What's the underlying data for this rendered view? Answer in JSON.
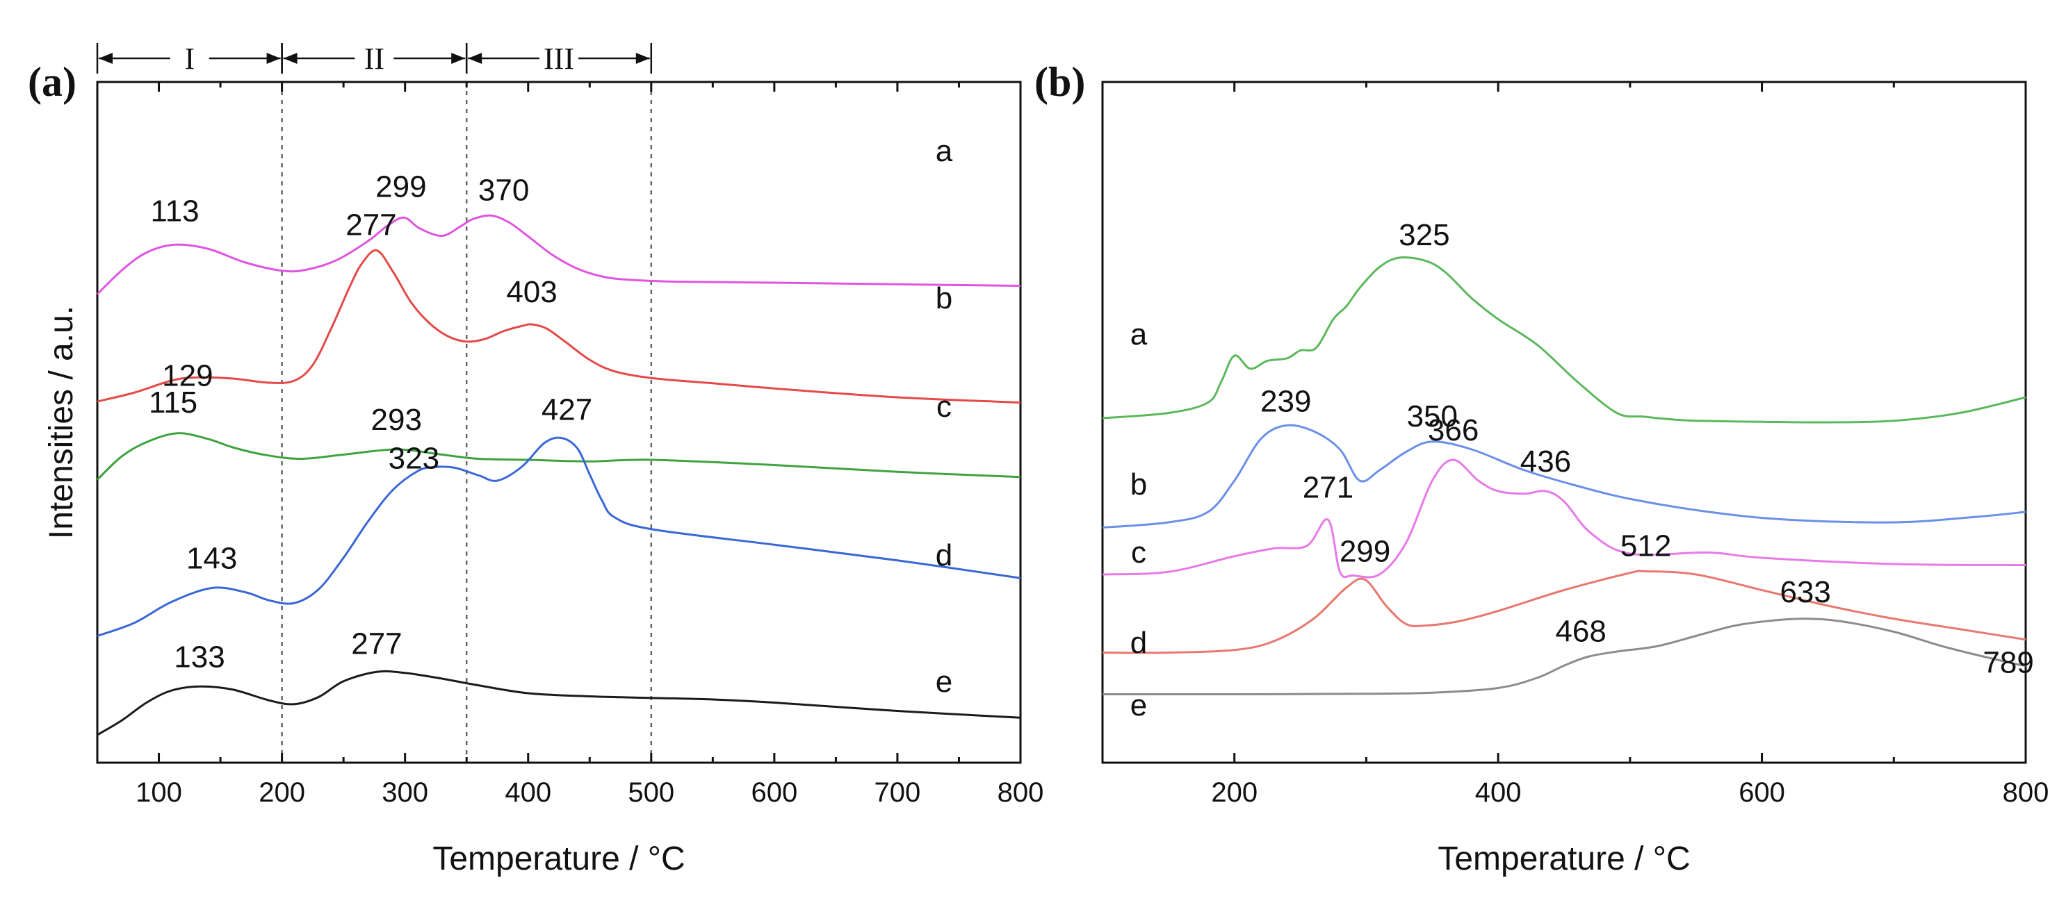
{
  "chart_data": [
    {
      "panel": "(a)",
      "type": "line",
      "xlabel": "Temperature / °C",
      "ylabel": "Intensities / a.u.",
      "xlim": [
        50,
        800
      ],
      "xticks": [
        100,
        200,
        300,
        400,
        500,
        600,
        700,
        800
      ],
      "ylim": [
        0,
        10
      ],
      "yticks_shown": false,
      "vertical_guides": [
        200,
        350,
        500
      ],
      "regions": [
        {
          "label": "I",
          "from": 50,
          "to": 200
        },
        {
          "label": "II",
          "from": 200,
          "to": 350
        },
        {
          "label": "III",
          "from": 350,
          "to": 500
        }
      ],
      "series": [
        {
          "name": "a",
          "color": "#e055e0",
          "x": [
            50,
            70,
            90,
            113,
            140,
            170,
            200,
            220,
            245,
            270,
            285,
            299,
            312,
            330,
            345,
            355,
            370,
            385,
            400,
            420,
            440,
            460,
            480,
            520,
            600,
            700,
            800
          ],
          "y": [
            8.46,
            8.92,
            9.26,
            9.41,
            9.33,
            9.07,
            8.91,
            8.93,
            9.12,
            9.48,
            9.76,
            9.93,
            9.72,
            9.58,
            9.76,
            9.9,
            9.97,
            9.83,
            9.57,
            9.21,
            8.95,
            8.8,
            8.74,
            8.7,
            8.68,
            8.65,
            8.62
          ]
        },
        {
          "name": "b",
          "color": "#e34a48",
          "x": [
            50,
            80,
            110,
            129,
            160,
            190,
            210,
            225,
            240,
            255,
            265,
            277,
            290,
            305,
            320,
            335,
            350,
            365,
            380,
            395,
            403,
            415,
            430,
            450,
            470,
            500,
            550,
            600,
            700,
            800
          ],
          "y": [
            6.4,
            6.57,
            6.8,
            6.86,
            6.84,
            6.76,
            6.8,
            7.1,
            7.8,
            8.6,
            9.05,
            9.3,
            8.9,
            8.3,
            7.9,
            7.65,
            7.55,
            7.6,
            7.75,
            7.85,
            7.88,
            7.8,
            7.55,
            7.2,
            6.98,
            6.85,
            6.75,
            6.65,
            6.48,
            6.38
          ]
        },
        {
          "name": "c",
          "color": "#3fa33f",
          "x": [
            50,
            70,
            90,
            115,
            140,
            160,
            185,
            215,
            250,
            293,
            330,
            360,
            400,
            450,
            500,
            600,
            700,
            800
          ],
          "y": [
            4.9,
            5.35,
            5.62,
            5.79,
            5.68,
            5.52,
            5.38,
            5.3,
            5.38,
            5.48,
            5.38,
            5.3,
            5.28,
            5.25,
            5.28,
            5.18,
            5.05,
            4.95
          ]
        },
        {
          "name": "d",
          "color": "#3a67d6",
          "x": [
            50,
            80,
            110,
            143,
            170,
            190,
            210,
            230,
            250,
            270,
            290,
            310,
            323,
            340,
            360,
            375,
            395,
            413,
            427,
            440,
            450,
            460,
            470,
            500,
            600,
            700,
            800
          ],
          "y": [
            1.9,
            2.15,
            2.55,
            2.82,
            2.74,
            2.58,
            2.53,
            2.8,
            3.4,
            4.1,
            4.7,
            5.06,
            5.14,
            5.13,
            4.98,
            4.88,
            5.15,
            5.6,
            5.7,
            5.5,
            5.0,
            4.5,
            4.18,
            3.95,
            3.65,
            3.35,
            3.01
          ]
        },
        {
          "name": "e",
          "color": "#1a1a1a",
          "x": [
            50,
            70,
            90,
            110,
            133,
            160,
            190,
            210,
            230,
            250,
            277,
            300,
            330,
            360,
            400,
            450,
            500,
            550,
            600,
            700,
            800
          ],
          "y": [
            0.0,
            0.28,
            0.62,
            0.85,
            0.93,
            0.87,
            0.66,
            0.59,
            0.73,
            1.03,
            1.21,
            1.19,
            1.08,
            0.95,
            0.8,
            0.74,
            0.71,
            0.68,
            0.62,
            0.46,
            0.33
          ]
        }
      ],
      "peak_labels": [
        {
          "text": "113",
          "series": "a",
          "x": 113
        },
        {
          "text": "299",
          "series": "a",
          "x": 299
        },
        {
          "text": "370",
          "series": "a",
          "x": 370
        },
        {
          "text": "277",
          "series": "b",
          "x": 277
        },
        {
          "text": "403",
          "series": "b",
          "x": 403
        },
        {
          "text": "129",
          "series": "b",
          "x": 129
        },
        {
          "text": "115",
          "series": "c",
          "x": 115
        },
        {
          "text": "293",
          "series": "c",
          "x": 293
        },
        {
          "text": "323",
          "series": "d",
          "x": 323
        },
        {
          "text": "427",
          "series": "d",
          "x": 427
        },
        {
          "text": "143",
          "series": "d",
          "x": 143
        },
        {
          "text": "133",
          "series": "e",
          "x": 133
        },
        {
          "text": "277",
          "series": "e",
          "x": 277
        }
      ]
    },
    {
      "panel": "(b)",
      "type": "line",
      "xlabel": "Temperature / °C",
      "ylabel": "",
      "xlim": [
        100,
        800
      ],
      "xticks": [
        200,
        400,
        600,
        800
      ],
      "ylim": [
        0,
        10
      ],
      "yticks_shown": false,
      "series": [
        {
          "name": "a",
          "color": "#5cb85c",
          "x": [
            100,
            150,
            180,
            190,
            200,
            212,
            225,
            240,
            250,
            262,
            275,
            285,
            295,
            310,
            325,
            345,
            360,
            380,
            400,
            430,
            460,
            490,
            510,
            530,
            550,
            600,
            650,
            700,
            750,
            800
          ],
          "y": [
            6.0,
            6.1,
            6.3,
            6.7,
            7.2,
            6.95,
            7.1,
            7.15,
            7.3,
            7.35,
            7.9,
            8.15,
            8.5,
            8.9,
            9.08,
            9.02,
            8.8,
            8.3,
            7.9,
            7.4,
            6.7,
            6.1,
            6.03,
            5.98,
            5.95,
            5.93,
            5.92,
            5.95,
            6.1,
            6.4
          ]
        },
        {
          "name": "b",
          "color": "#6b8fe8",
          "x": [
            100,
            150,
            180,
            200,
            220,
            239,
            260,
            280,
            295,
            310,
            330,
            350,
            380,
            420,
            460,
            500,
            560,
            620,
            700,
            760,
            800
          ],
          "y": [
            3.9,
            4.0,
            4.2,
            4.8,
            5.6,
            5.86,
            5.75,
            5.4,
            4.8,
            5.0,
            5.35,
            5.55,
            5.4,
            5.0,
            4.7,
            4.45,
            4.2,
            4.05,
            4.0,
            4.1,
            4.2
          ]
        },
        {
          "name": "c",
          "color": "#e87ae8",
          "x": [
            100,
            150,
            200,
            230,
            255,
            271,
            280,
            290,
            310,
            330,
            350,
            366,
            385,
            400,
            420,
            436,
            450,
            470,
            500,
            560,
            600,
            700,
            800
          ],
          "y": [
            3.0,
            3.05,
            3.35,
            3.5,
            3.55,
            4.05,
            3.05,
            2.98,
            3.0,
            3.6,
            4.8,
            5.2,
            4.8,
            4.6,
            4.55,
            4.6,
            4.4,
            3.8,
            3.4,
            3.42,
            3.32,
            3.2,
            3.18
          ]
        },
        {
          "name": "d",
          "color": "#e87870",
          "x": [
            100,
            150,
            200,
            230,
            260,
            285,
            299,
            315,
            330,
            345,
            370,
            400,
            450,
            500,
            512,
            550,
            600,
            650,
            700,
            750,
            800
          ],
          "y": [
            1.5,
            1.5,
            1.55,
            1.72,
            2.15,
            2.75,
            2.9,
            2.4,
            2.05,
            2.02,
            2.1,
            2.3,
            2.7,
            3.03,
            3.06,
            3.0,
            2.7,
            2.4,
            2.15,
            1.95,
            1.75
          ]
        },
        {
          "name": "e",
          "color": "#8c8c8c",
          "x": [
            100,
            200,
            300,
            350,
            400,
            430,
            450,
            468,
            490,
            520,
            550,
            580,
            610,
            633,
            660,
            700,
            740,
            789,
            800
          ],
          "y": [
            0.7,
            0.7,
            0.71,
            0.73,
            0.82,
            1.02,
            1.25,
            1.42,
            1.52,
            1.62,
            1.82,
            2.02,
            2.12,
            2.15,
            2.1,
            1.9,
            1.6,
            1.3,
            1.25
          ]
        }
      ],
      "peak_labels": [
        {
          "text": "325",
          "series": "a",
          "x": 325
        },
        {
          "text": "239",
          "series": "b",
          "x": 239
        },
        {
          "text": "350",
          "series": "b",
          "x": 350
        },
        {
          "text": "271",
          "series": "c",
          "x": 271
        },
        {
          "text": "366",
          "series": "c",
          "x": 366
        },
        {
          "text": "436",
          "series": "c",
          "x": 436
        },
        {
          "text": "299",
          "series": "d",
          "x": 299
        },
        {
          "text": "512",
          "series": "d",
          "x": 512
        },
        {
          "text": "468",
          "series": "e",
          "x": 468
        },
        {
          "text": "633",
          "series": "e",
          "x": 633
        },
        {
          "text": "789",
          "series": "e",
          "x": 789
        }
      ]
    }
  ]
}
